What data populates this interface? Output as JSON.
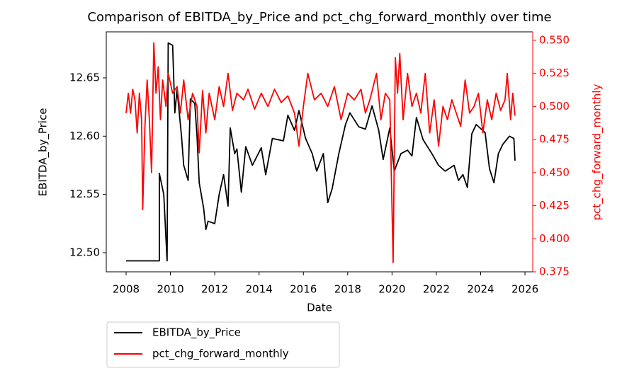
{
  "chart_data": {
    "type": "line",
    "title": "Comparison of EBITDA_by_Price and pct_chg_forward_monthly over time",
    "x_label": "Date",
    "y_label": "EBITDA_by_Price",
    "y2_label": "pct_chg_forward_monthly",
    "xlim": [
      2007.105,
      2026.35
    ],
    "xticks": [
      2008,
      2010,
      2012,
      2014,
      2016,
      2018,
      2020,
      2022,
      2024,
      2026
    ],
    "ylim": [
      12.4836,
      12.6895
    ],
    "yticks": [
      {
        "value": 12.5,
        "label": "12.50"
      },
      12.55,
      {
        "value": 12.6,
        "label": "12.60"
      },
      12.65
    ],
    "y2lim": [
      0.375,
      0.5564
    ],
    "y2ticks": [
      0.375,
      {
        "value": 0.4,
        "label": "0.400"
      },
      0.425,
      {
        "value": 0.45,
        "label": "0.450"
      },
      0.475,
      {
        "value": 0.5,
        "label": "0.500"
      },
      0.525,
      {
        "value": 0.55,
        "label": "0.550"
      }
    ],
    "y2_color": "#ff0000",
    "legend": "below",
    "series": [
      {
        "name": "EBITDA_by_Price",
        "color": "#000000",
        "x": [
          2008.0,
          2009.5,
          2009.5,
          2009.7,
          2009.85,
          2009.9,
          2010.1,
          2010.2,
          2010.3,
          2010.5,
          2010.6,
          2010.8,
          2010.9,
          2011.1,
          2011.2,
          2011.3,
          2011.5,
          2011.6,
          2011.7,
          2012.0,
          2012.2,
          2012.4,
          2012.6,
          2012.7,
          2012.9,
          2013.0,
          2013.2,
          2013.4,
          2013.7,
          2014.1,
          2014.3,
          2014.6,
          2015.1,
          2015.3,
          2015.6,
          2015.8,
          2016.1,
          2016.4,
          2016.6,
          2016.9,
          2017.1,
          2017.3,
          2017.6,
          2017.9,
          2018.1,
          2018.5,
          2018.8,
          2019.1,
          2019.4,
          2019.6,
          2019.9,
          2020.1,
          2020.4,
          2020.7,
          2020.9,
          2021.1,
          2021.4,
          2021.8,
          2022.1,
          2022.4,
          2022.8,
          2023.0,
          2023.2,
          2023.4,
          2023.6,
          2023.8,
          2024.2,
          2024.4,
          2024.6,
          2024.8,
          2025.0,
          2025.3,
          2025.5,
          2025.55
        ],
        "values": [
          12.493,
          12.493,
          12.568,
          12.55,
          12.493,
          12.68,
          12.678,
          12.62,
          12.64,
          12.6,
          12.575,
          12.562,
          12.632,
          12.628,
          12.6,
          12.56,
          12.538,
          12.52,
          12.527,
          12.525,
          12.55,
          12.567,
          12.54,
          12.607,
          12.585,
          12.589,
          12.552,
          12.591,
          12.575,
          12.59,
          12.567,
          12.598,
          12.596,
          12.618,
          12.605,
          12.622,
          12.598,
          12.585,
          12.57,
          12.585,
          12.543,
          12.555,
          12.585,
          12.61,
          12.62,
          12.608,
          12.606,
          12.626,
          12.605,
          12.58,
          12.607,
          12.57,
          12.585,
          12.588,
          12.583,
          12.616,
          12.597,
          12.585,
          12.575,
          12.57,
          12.575,
          12.562,
          12.567,
          12.556,
          12.602,
          12.61,
          12.603,
          12.572,
          12.56,
          12.585,
          12.593,
          12.6,
          12.598,
          12.579
        ]
      },
      {
        "name": "pct_chg_forward_monthly",
        "color": "#ff0000",
        "axis": "y2",
        "x": [
          2008.0,
          2008.1,
          2008.2,
          2008.3,
          2008.4,
          2008.5,
          2008.6,
          2008.7,
          2008.75,
          2008.85,
          2008.95,
          2009.05,
          2009.15,
          2009.25,
          2009.35,
          2009.45,
          2009.55,
          2009.65,
          2009.8,
          2009.9,
          2010.1,
          2010.3,
          2010.45,
          2010.6,
          2010.8,
          2011.0,
          2011.2,
          2011.3,
          2011.45,
          2011.6,
          2011.75,
          2012.0,
          2012.2,
          2012.4,
          2012.6,
          2012.8,
          2013.0,
          2013.3,
          2013.5,
          2013.8,
          2014.1,
          2014.4,
          2014.7,
          2015.0,
          2015.3,
          2015.6,
          2015.8,
          2016.0,
          2016.2,
          2016.5,
          2016.8,
          2017.1,
          2017.4,
          2017.7,
          2018.0,
          2018.3,
          2018.6,
          2018.8,
          2019.0,
          2019.3,
          2019.5,
          2019.7,
          2019.9,
          2020.05,
          2020.15,
          2020.25,
          2020.35,
          2020.5,
          2020.7,
          2020.9,
          2021.1,
          2021.3,
          2021.5,
          2021.7,
          2021.9,
          2022.1,
          2022.3,
          2022.5,
          2022.7,
          2022.9,
          2023.1,
          2023.3,
          2023.5,
          2023.7,
          2023.9,
          2024.1,
          2024.3,
          2024.5,
          2024.7,
          2024.9,
          2025.1,
          2025.2,
          2025.35,
          2025.45,
          2025.55
        ],
        "values": [
          0.495,
          0.51,
          0.495,
          0.513,
          0.505,
          0.48,
          0.51,
          0.49,
          0.422,
          0.485,
          0.52,
          0.49,
          0.45,
          0.548,
          0.51,
          0.53,
          0.49,
          0.52,
          0.5,
          0.525,
          0.51,
          0.515,
          0.495,
          0.52,
          0.49,
          0.51,
          0.5,
          0.465,
          0.512,
          0.48,
          0.51,
          0.49,
          0.515,
          0.5,
          0.525,
          0.497,
          0.51,
          0.505,
          0.513,
          0.498,
          0.51,
          0.5,
          0.513,
          0.503,
          0.508,
          0.495,
          0.47,
          0.5,
          0.525,
          0.505,
          0.51,
          0.5,
          0.515,
          0.49,
          0.51,
          0.505,
          0.513,
          0.495,
          0.505,
          0.525,
          0.49,
          0.51,
          0.505,
          0.382,
          0.537,
          0.51,
          0.54,
          0.49,
          0.525,
          0.5,
          0.51,
          0.495,
          0.525,
          0.48,
          0.505,
          0.47,
          0.5,
          0.49,
          0.505,
          0.495,
          0.485,
          0.52,
          0.495,
          0.5,
          0.51,
          0.48,
          0.505,
          0.49,
          0.51,
          0.497,
          0.505,
          0.525,
          0.49,
          0.51,
          0.493
        ]
      }
    ]
  }
}
